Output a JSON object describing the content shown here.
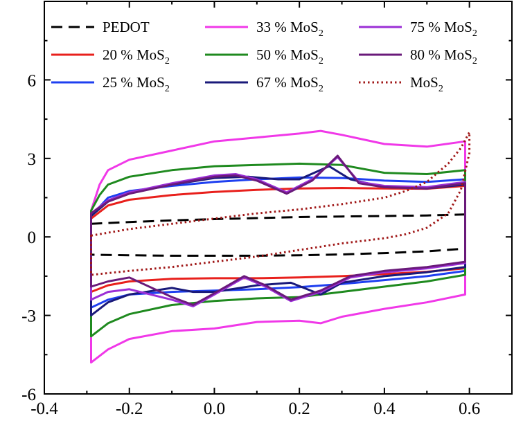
{
  "chart_data": {
    "type": "line",
    "xlim": [
      -0.4,
      0.7
    ],
    "ylim": [
      -6,
      9
    ],
    "x_ticks": [
      -0.4,
      -0.2,
      0.0,
      0.2,
      0.4,
      0.6
    ],
    "x_tick_labels": [
      "-0.4",
      "-0.2",
      "0.0",
      "0.2",
      "0.4",
      "0.6"
    ],
    "y_ticks": [
      -6,
      -3,
      0,
      3,
      6
    ],
    "y_tick_labels": [
      "-6",
      "-3",
      "0",
      "3",
      "6"
    ],
    "grid": false,
    "legend_position": "top",
    "series": [
      {
        "name": "PEDOT",
        "label": "PEDOT",
        "color": "#000000",
        "dash": "dashed",
        "upper": {
          "x": [
            -0.29,
            -0.2,
            -0.1,
            0.0,
            0.1,
            0.2,
            0.3,
            0.4,
            0.5,
            0.59
          ],
          "y": [
            0.5,
            0.57,
            0.63,
            0.68,
            0.72,
            0.76,
            0.78,
            0.8,
            0.82,
            0.86
          ]
        },
        "lower": {
          "x": [
            -0.29,
            -0.2,
            -0.1,
            0.0,
            0.1,
            0.2,
            0.3,
            0.4,
            0.5,
            0.59
          ],
          "y": [
            -0.68,
            -0.7,
            -0.72,
            -0.72,
            -0.72,
            -0.7,
            -0.67,
            -0.62,
            -0.55,
            -0.45
          ]
        }
      },
      {
        "name": "20 % MoS2",
        "label": "20 % MoS",
        "sub": "2",
        "color": "#e8201c",
        "dash": "solid",
        "upper": {
          "x": [
            -0.29,
            -0.25,
            -0.2,
            -0.1,
            0.0,
            0.1,
            0.2,
            0.3,
            0.4,
            0.5,
            0.59
          ],
          "y": [
            0.7,
            1.2,
            1.42,
            1.6,
            1.72,
            1.8,
            1.85,
            1.87,
            1.85,
            1.84,
            1.95
          ]
        },
        "lower": {
          "x": [
            -0.29,
            -0.25,
            -0.2,
            -0.1,
            0.0,
            0.1,
            0.2,
            0.3,
            0.4,
            0.5,
            0.59
          ],
          "y": [
            -2.1,
            -1.85,
            -1.7,
            -1.6,
            -1.58,
            -1.58,
            -1.55,
            -1.5,
            -1.42,
            -1.33,
            -1.2
          ]
        }
      },
      {
        "name": "25 % MoS2",
        "label": "25 % MoS",
        "sub": "2",
        "color": "#1e3ff0",
        "dash": "solid",
        "upper": {
          "x": [
            -0.29,
            -0.25,
            -0.2,
            -0.1,
            0.0,
            0.1,
            0.2,
            0.3,
            0.4,
            0.5,
            0.59
          ],
          "y": [
            0.8,
            1.5,
            1.75,
            1.95,
            2.1,
            2.2,
            2.27,
            2.25,
            2.15,
            2.1,
            2.2
          ]
        },
        "lower": {
          "x": [
            -0.29,
            -0.25,
            -0.2,
            -0.1,
            0.0,
            0.1,
            0.2,
            0.3,
            0.4,
            0.5,
            0.59
          ],
          "y": [
            -2.7,
            -2.4,
            -2.2,
            -2.1,
            -2.05,
            -2.0,
            -1.92,
            -1.8,
            -1.65,
            -1.5,
            -1.3
          ]
        }
      },
      {
        "name": "33 % MoS2",
        "label": "33 % MoS",
        "sub": "2",
        "color": "#f038e8",
        "dash": "solid",
        "upper": {
          "x": [
            -0.29,
            -0.27,
            -0.25,
            -0.2,
            -0.1,
            0.0,
            0.1,
            0.2,
            0.25,
            0.3,
            0.4,
            0.5,
            0.59
          ],
          "y": [
            1.0,
            2.0,
            2.55,
            2.95,
            3.3,
            3.65,
            3.8,
            3.95,
            4.05,
            3.9,
            3.55,
            3.45,
            3.65
          ]
        },
        "lower": {
          "x": [
            -0.29,
            -0.25,
            -0.2,
            -0.1,
            0.0,
            0.1,
            0.2,
            0.25,
            0.3,
            0.4,
            0.5,
            0.59
          ],
          "y": [
            -4.8,
            -4.3,
            -3.9,
            -3.6,
            -3.5,
            -3.25,
            -3.2,
            -3.3,
            -3.05,
            -2.75,
            -2.5,
            -2.2
          ]
        }
      },
      {
        "name": "50 % MoS2",
        "label": "50 % MoS",
        "sub": "2",
        "color": "#1f8a1f",
        "dash": "solid",
        "upper": {
          "x": [
            -0.29,
            -0.27,
            -0.25,
            -0.2,
            -0.1,
            0.0,
            0.1,
            0.2,
            0.3,
            0.4,
            0.5,
            0.59
          ],
          "y": [
            1.0,
            1.6,
            2.0,
            2.3,
            2.55,
            2.7,
            2.75,
            2.8,
            2.75,
            2.45,
            2.4,
            2.55
          ]
        },
        "lower": {
          "x": [
            -0.29,
            -0.25,
            -0.2,
            -0.1,
            0.0,
            0.1,
            0.2,
            0.3,
            0.4,
            0.5,
            0.59
          ],
          "y": [
            -3.8,
            -3.3,
            -2.95,
            -2.6,
            -2.45,
            -2.35,
            -2.3,
            -2.1,
            -1.9,
            -1.7,
            -1.45
          ]
        }
      },
      {
        "name": "67 % MoS2",
        "label": "67 % MoS",
        "sub": "2",
        "color": "#1a1a7a",
        "dash": "solid",
        "upper": {
          "x": [
            -0.29,
            -0.25,
            -0.2,
            -0.1,
            0.0,
            0.08,
            0.15,
            0.2,
            0.27,
            0.32,
            0.4,
            0.5,
            0.59
          ],
          "y": [
            0.8,
            1.35,
            1.7,
            2.0,
            2.25,
            2.3,
            2.2,
            2.2,
            2.7,
            2.2,
            1.9,
            1.85,
            2.0
          ]
        },
        "lower": {
          "x": [
            -0.29,
            -0.25,
            -0.2,
            -0.1,
            -0.05,
            0.0,
            0.1,
            0.18,
            0.25,
            0.3,
            0.4,
            0.5,
            0.59
          ],
          "y": [
            -3.0,
            -2.5,
            -2.2,
            -1.95,
            -2.1,
            -2.1,
            -1.85,
            -1.75,
            -2.2,
            -1.75,
            -1.5,
            -1.35,
            -1.15
          ]
        }
      },
      {
        "name": "75 % MoS2",
        "label": "75 % MoS",
        "sub": "2",
        "color": "#9b2fd6",
        "dash": "solid",
        "upper": {
          "x": [
            -0.29,
            -0.25,
            -0.2,
            -0.1,
            0.0,
            0.05,
            0.1,
            0.17,
            0.23,
            0.29,
            0.34,
            0.4,
            0.5,
            0.59
          ],
          "y": [
            0.9,
            1.4,
            1.7,
            2.05,
            2.35,
            2.4,
            2.2,
            1.7,
            2.2,
            3.05,
            2.1,
            1.95,
            1.9,
            2.1
          ]
        },
        "lower": {
          "x": [
            -0.29,
            -0.25,
            -0.2,
            -0.1,
            -0.05,
            0.0,
            0.07,
            0.12,
            0.18,
            0.25,
            0.32,
            0.4,
            0.5,
            0.59
          ],
          "y": [
            -2.4,
            -2.1,
            -2.0,
            -2.4,
            -2.65,
            -2.2,
            -1.55,
            -1.9,
            -2.45,
            -2.1,
            -1.55,
            -1.35,
            -1.2,
            -1.0
          ]
        }
      },
      {
        "name": "80 % MoS2",
        "label": "80 % MoS",
        "sub": "2",
        "color": "#6a1a7a",
        "dash": "solid",
        "upper": {
          "x": [
            -0.29,
            -0.25,
            -0.2,
            -0.1,
            0.0,
            0.05,
            0.1,
            0.17,
            0.23,
            0.29,
            0.34,
            0.4,
            0.5,
            0.59
          ],
          "y": [
            0.9,
            1.35,
            1.65,
            2.0,
            2.3,
            2.35,
            2.15,
            1.65,
            2.15,
            3.1,
            2.05,
            1.9,
            1.85,
            2.05
          ]
        },
        "lower": {
          "x": [
            -0.29,
            -0.25,
            -0.2,
            -0.1,
            -0.05,
            0.0,
            0.07,
            0.12,
            0.18,
            0.25,
            0.32,
            0.4,
            0.5,
            0.59
          ],
          "y": [
            -1.9,
            -1.7,
            -1.55,
            -2.3,
            -2.6,
            -2.15,
            -1.5,
            -1.85,
            -2.4,
            -2.05,
            -1.5,
            -1.3,
            -1.15,
            -0.95
          ]
        }
      },
      {
        "name": "MoS2",
        "label": "MoS",
        "sub": "2",
        "color": "#a01818",
        "dash": "dotted",
        "upper": {
          "x": [
            -0.29,
            -0.2,
            -0.1,
            0.0,
            0.1,
            0.2,
            0.3,
            0.4,
            0.45,
            0.5,
            0.55,
            0.58,
            0.6
          ],
          "y": [
            0.05,
            0.3,
            0.5,
            0.7,
            0.9,
            1.05,
            1.25,
            1.5,
            1.75,
            2.1,
            2.8,
            3.4,
            4.0
          ]
        },
        "lower": {
          "x": [
            -0.29,
            -0.2,
            -0.1,
            0.0,
            0.1,
            0.2,
            0.3,
            0.4,
            0.45,
            0.5,
            0.55,
            0.58,
            0.6
          ],
          "y": [
            -1.45,
            -1.3,
            -1.15,
            -0.95,
            -0.75,
            -0.5,
            -0.25,
            -0.05,
            0.1,
            0.35,
            0.9,
            1.8,
            3.2
          ]
        }
      }
    ],
    "legend_layout": [
      [
        "PEDOT",
        "33 % MoS2",
        "75 % MoS2"
      ],
      [
        "20 % MoS2",
        "50 % MoS2",
        "80 % MoS2"
      ],
      [
        "25 % MoS2",
        "67 % MoS2",
        "MoS2"
      ]
    ]
  }
}
